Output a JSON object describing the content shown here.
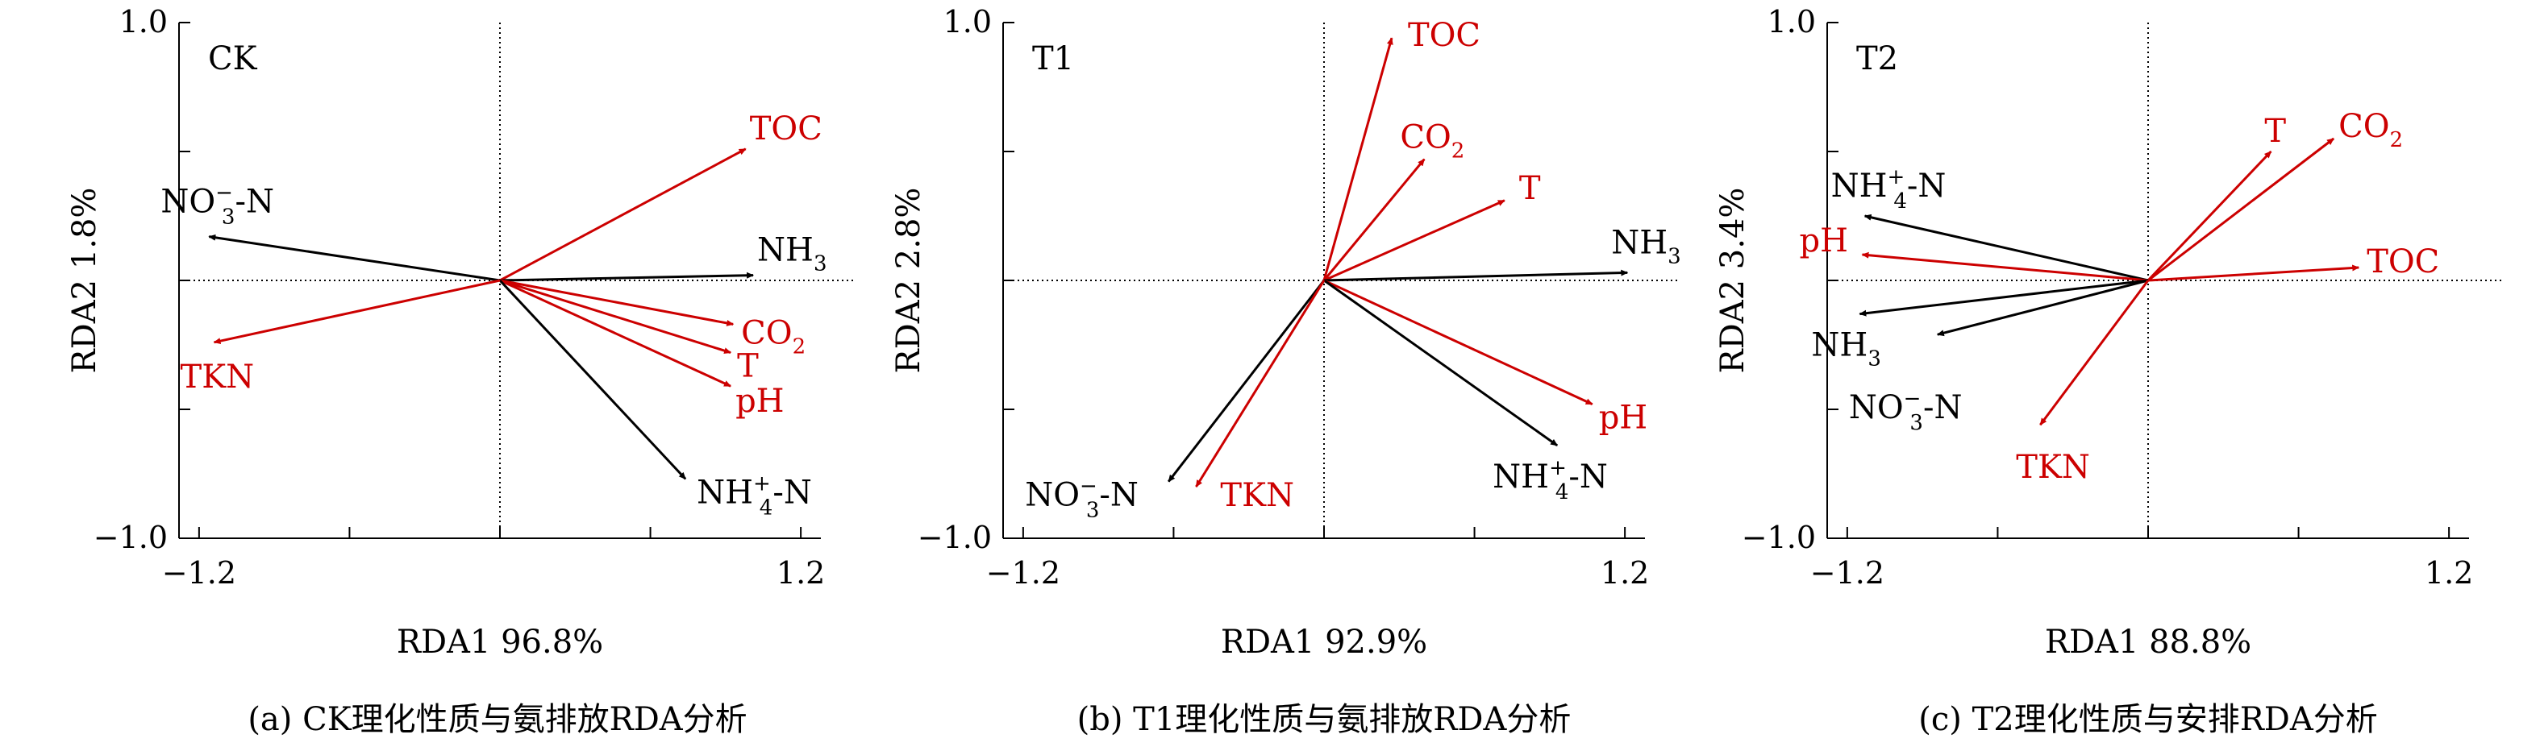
{
  "colors": {
    "species": "#000000",
    "environment": "#cc0000"
  },
  "chart_data": [
    {
      "type": "scatter",
      "plot_subtype": "rda-biplot",
      "panel_label": "CK",
      "caption": "(a) CK理化性质与氨排放RDA分析",
      "xlabel": "RDA1 96.8%",
      "ylabel": "RDA2 1.8%",
      "xlim": [
        -1.2,
        1.2
      ],
      "ylim": [
        -1.0,
        1.0
      ],
      "xticks": [
        "−1.2",
        "1.2"
      ],
      "yticks": [
        "1.0",
        "−1.0"
      ],
      "vectors": [
        {
          "name": "TOC",
          "sub": "",
          "sup": "",
          "type": "environment",
          "x": 0.98,
          "y": 0.51
        },
        {
          "name": "NH",
          "sub": "3",
          "sup": "",
          "type": "species",
          "x": 1.01,
          "y": 0.02
        },
        {
          "name": "CO",
          "sub": "2",
          "sup": "",
          "type": "environment",
          "x": 0.93,
          "y": -0.17
        },
        {
          "name": "T",
          "sub": "",
          "sup": "",
          "type": "environment",
          "x": 0.92,
          "y": -0.28
        },
        {
          "name": "pH",
          "sub": "",
          "sup": "",
          "type": "environment",
          "x": 0.92,
          "y": -0.41
        },
        {
          "name": "NH",
          "sub": "4",
          "sup": "+",
          "suffix": "-N",
          "type": "species",
          "x": 0.74,
          "y": -0.77
        },
        {
          "name": "NO",
          "sub": "3",
          "sup": "−",
          "suffix": "-N",
          "type": "species",
          "x": -1.16,
          "y": 0.17
        },
        {
          "name": "TKN",
          "sub": "",
          "sup": "",
          "type": "environment",
          "x": -1.14,
          "y": -0.24
        }
      ]
    },
    {
      "type": "scatter",
      "plot_subtype": "rda-biplot",
      "panel_label": "T1",
      "caption": "(b) T1理化性质与氨排放RDA分析",
      "xlabel": "RDA1 92.9%",
      "ylabel": "RDA2 2.8%",
      "xlim": [
        -1.2,
        1.2
      ],
      "ylim": [
        -1.0,
        1.0
      ],
      "xticks": [
        "−1.2",
        "1.2"
      ],
      "yticks": [
        "1.0",
        "−1.0"
      ],
      "vectors": [
        {
          "name": "TOC",
          "sub": "",
          "sup": "",
          "type": "environment",
          "x": 0.27,
          "y": 0.94
        },
        {
          "name": "CO",
          "sub": "2",
          "sup": "",
          "type": "environment",
          "x": 0.4,
          "y": 0.47
        },
        {
          "name": "T",
          "sub": "",
          "sup": "",
          "type": "environment",
          "x": 0.72,
          "y": 0.31
        },
        {
          "name": "NH",
          "sub": "3",
          "sup": "",
          "type": "species",
          "x": 1.21,
          "y": 0.03
        },
        {
          "name": "pH",
          "sub": "",
          "sup": "",
          "type": "environment",
          "x": 1.07,
          "y": -0.48
        },
        {
          "name": "NH",
          "sub": "4",
          "sup": "+",
          "suffix": "-N",
          "type": "species",
          "x": 0.93,
          "y": -0.64
        },
        {
          "name": "NO",
          "sub": "3",
          "sup": "−",
          "suffix": "-N",
          "type": "species",
          "x": -0.62,
          "y": -0.78
        },
        {
          "name": "TKN",
          "sub": "",
          "sup": "",
          "type": "environment",
          "x": -0.51,
          "y": -0.8
        }
      ]
    },
    {
      "type": "scatter",
      "plot_subtype": "rda-biplot",
      "panel_label": "T2",
      "caption": "(c) T2理化性质与安排RDA分析",
      "xlabel": "RDA1 88.8%",
      "ylabel": "RDA2 3.4%",
      "xlim": [
        -1.2,
        1.2
      ],
      "ylim": [
        -1.0,
        1.0
      ],
      "xticks": [
        "−1.2",
        "1.2"
      ],
      "yticks": [
        "1.0",
        "−1.0"
      ],
      "vectors": [
        {
          "name": "T",
          "sub": "",
          "sup": "",
          "type": "environment",
          "x": 0.49,
          "y": 0.5
        },
        {
          "name": "CO",
          "sub": "2",
          "sup": "",
          "type": "environment",
          "x": 0.74,
          "y": 0.55
        },
        {
          "name": "TOC",
          "sub": "",
          "sup": "",
          "type": "environment",
          "x": 0.84,
          "y": 0.05
        },
        {
          "name": "NH",
          "sub": "4",
          "sup": "+",
          "suffix": "-N",
          "type": "species",
          "x": -1.13,
          "y": 0.25
        },
        {
          "name": "pH",
          "sub": "",
          "sup": "",
          "type": "environment",
          "x": -1.14,
          "y": 0.1
        },
        {
          "name": "NH",
          "sub": "3",
          "sup": "",
          "type": "species",
          "x": -1.15,
          "y": -0.13
        },
        {
          "name": "NO",
          "sub": "3",
          "sup": "−",
          "suffix": "-N",
          "type": "species",
          "x": -0.84,
          "y": -0.21
        },
        {
          "name": "TKN",
          "sub": "",
          "sup": "",
          "type": "environment",
          "x": -0.43,
          "y": -0.56
        }
      ]
    }
  ]
}
